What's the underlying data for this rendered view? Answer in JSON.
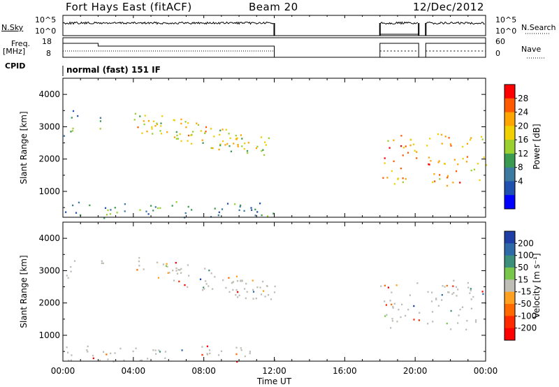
{
  "header": {
    "station": "Fort Hays East (fitACF)",
    "beam": "Beam 20",
    "date": "12/Dec/2012"
  },
  "strip_labels": {
    "nsky": "N.Sky",
    "nsky_ticks": [
      "10^5",
      "10^0"
    ],
    "nsearch": "N.Search",
    "nsearch_ticks": [
      "10^5",
      "10^0"
    ],
    "freq": "Freq.",
    "freq_unit": "[MHz]",
    "freq_ticks": [
      "18",
      "8"
    ],
    "nave": "Nave",
    "nave_ticks": [
      "60",
      "0"
    ],
    "cpid": "CPID",
    "cpid_text": "normal (fast) 151 IF"
  },
  "chart_data": [
    {
      "type": "heatmap",
      "name": "power-panel",
      "ylabel": "Slant Range [km]",
      "ylim": [
        200,
        4500
      ],
      "yticks": [
        1000,
        2000,
        3000,
        4000
      ],
      "xlim": [
        0,
        24
      ],
      "colorbar": {
        "label": "Power [dB]",
        "ticks": [
          "28",
          "24",
          "20",
          "16",
          "12",
          "8",
          "4"
        ],
        "colors": [
          "#ff0000",
          "#ff5a00",
          "#ffa500",
          "#f0d000",
          "#9ad030",
          "#3a9a50",
          "#3c7aa0",
          "#2050b0",
          "#0000ff"
        ]
      },
      "echo_regions": [
        {
          "t0": 0.0,
          "t1": 0.8,
          "r0": 2700,
          "r1": 3700,
          "power": 10
        },
        {
          "t0": 2.0,
          "t1": 2.6,
          "r0": 2900,
          "r1": 3500,
          "power": 12
        },
        {
          "t0": 4.0,
          "t1": 12.0,
          "r0": 2000,
          "r1": 3400,
          "power": 20
        },
        {
          "t0": 0.0,
          "t1": 12.0,
          "r0": 200,
          "r1": 700,
          "power": 10
        },
        {
          "t0": 18.0,
          "t1": 20.2,
          "r0": 1200,
          "r1": 2800,
          "power": 24
        },
        {
          "t0": 20.6,
          "t1": 24.0,
          "r0": 1200,
          "r1": 2800,
          "power": 24
        }
      ]
    },
    {
      "type": "heatmap",
      "name": "velocity-panel",
      "ylabel": "Slant Range [km]",
      "xlabel": "Time UT",
      "xticks": [
        "00:00",
        "04:00",
        "08:00",
        "12:00",
        "16:00",
        "20:00",
        "00:00"
      ],
      "ylim": [
        200,
        4500
      ],
      "yticks": [
        1000,
        2000,
        3000,
        4000
      ],
      "xlim": [
        0,
        24
      ],
      "colorbar": {
        "label": "Velocity [m s⁻¹]",
        "ticks": [
          "200",
          "100",
          "50",
          "15",
          "-15",
          "-50",
          "-100",
          "-200"
        ],
        "colors": [
          "#1f3fa6",
          "#2f6aa8",
          "#3c8f7a",
          "#7ac64a",
          "#bebeb6",
          "#ffa020",
          "#ff6a00",
          "#ff2a00",
          "#ff0000"
        ]
      },
      "echo_regions": [
        {
          "t0": 0.0,
          "t1": 0.8,
          "r0": 2800,
          "r1": 3500,
          "velocity": 0
        },
        {
          "t0": 2.0,
          "t1": 2.6,
          "r0": 2900,
          "r1": 3400,
          "velocity": 0
        },
        {
          "t0": 4.0,
          "t1": 12.0,
          "r0": 2100,
          "r1": 3300,
          "velocity": 0
        },
        {
          "t0": 0.0,
          "t1": 12.0,
          "r0": 200,
          "r1": 700,
          "velocity": -30
        },
        {
          "t0": 18.0,
          "t1": 20.2,
          "r0": 1200,
          "r1": 2800,
          "velocity": 0
        },
        {
          "t0": 20.6,
          "t1": 24.0,
          "r0": 1200,
          "r1": 2800,
          "velocity": 0
        }
      ]
    }
  ]
}
